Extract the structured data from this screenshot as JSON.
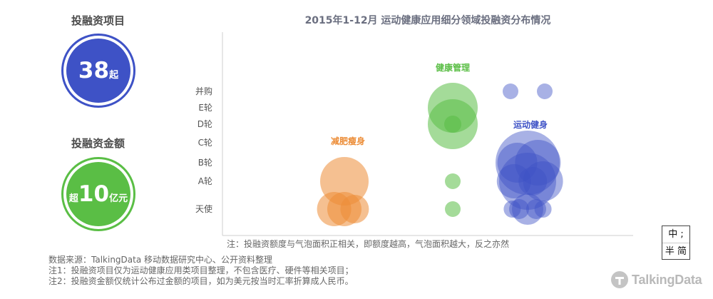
{
  "stats": {
    "count_title": "投融资项目",
    "count_value": "38",
    "count_unit": "起",
    "amount_title": "投融资金额",
    "amount_prefix": "超",
    "amount_value": "10",
    "amount_unit": "亿元"
  },
  "chart_data": {
    "type": "scatter",
    "title": "2015年1-12月 运动健康应用细分领域投融资分布情况",
    "y_categories": [
      "天使",
      "A轮",
      "B轮",
      "C轮",
      "D轮",
      "E轮",
      "并购"
    ],
    "note": "注：投融资额度与气泡面积正相关，即额度越高，气泡面积越大，反之亦然",
    "series": [
      {
        "name": "减肥瘦身",
        "color": "#ec8c36",
        "points": [
          {
            "round": "A轮",
            "offset": 0.0,
            "size": 34
          },
          {
            "round": "天使",
            "offset": -0.6,
            "size": 24
          },
          {
            "round": "天使",
            "offset": 0.0,
            "size": 24
          },
          {
            "round": "天使",
            "offset": 0.6,
            "size": 20
          }
        ]
      },
      {
        "name": "健康管理",
        "color": "#5abe45",
        "points": [
          {
            "round": "E轮",
            "offset": 0.0,
            "size": 35
          },
          {
            "round": "D轮",
            "offset": 0.0,
            "size": 35
          },
          {
            "round": "D轮",
            "offset": 0.0,
            "size": 12
          },
          {
            "round": "A轮",
            "offset": 0.0,
            "size": 11
          },
          {
            "round": "天使",
            "offset": 0.0,
            "size": 11
          }
        ]
      },
      {
        "name": "运动健身",
        "color": "#3e52c6",
        "points": [
          {
            "round": "并购",
            "offset": -1.0,
            "size": 11
          },
          {
            "round": "并购",
            "offset": 1.0,
            "size": 11
          },
          {
            "round": "B轮",
            "offset": 0.0,
            "size": 45
          },
          {
            "round": "B轮",
            "offset": -0.6,
            "size": 28
          },
          {
            "round": "B轮",
            "offset": 0.6,
            "size": 32
          },
          {
            "round": "A轮",
            "offset": 0.0,
            "size": 40
          },
          {
            "round": "A轮",
            "offset": -0.8,
            "size": 24
          },
          {
            "round": "A轮",
            "offset": 0.9,
            "size": 28
          },
          {
            "round": "A轮",
            "offset": 0.3,
            "size": 20
          },
          {
            "round": "天使",
            "offset": 0.0,
            "size": 22
          },
          {
            "round": "天使",
            "offset": -0.9,
            "size": 12
          },
          {
            "round": "天使",
            "offset": 0.9,
            "size": 12
          },
          {
            "round": "天使",
            "offset": -0.5,
            "size": 14
          },
          {
            "round": "天使",
            "offset": 0.5,
            "size": 14
          }
        ]
      }
    ],
    "annotations": [
      "减肥瘦身",
      "健康管理",
      "运动健身"
    ]
  },
  "footnotes": [
    "数据来源：TalkingData 移动数据研究中心、公开资料整理",
    "注1：投融资项目仅为运动健康应用类项目整理，不包含医疗、硬件等相关项目；",
    "注2：投融资金额仅统计公布过金额的项目，如为美元按当时汇率折算成人民币。"
  ],
  "ime": {
    "top": "中 ;",
    "bottom": "半 简"
  },
  "logo": {
    "text": "TalkingData",
    "icon": "talkingdata-logo-icon"
  }
}
